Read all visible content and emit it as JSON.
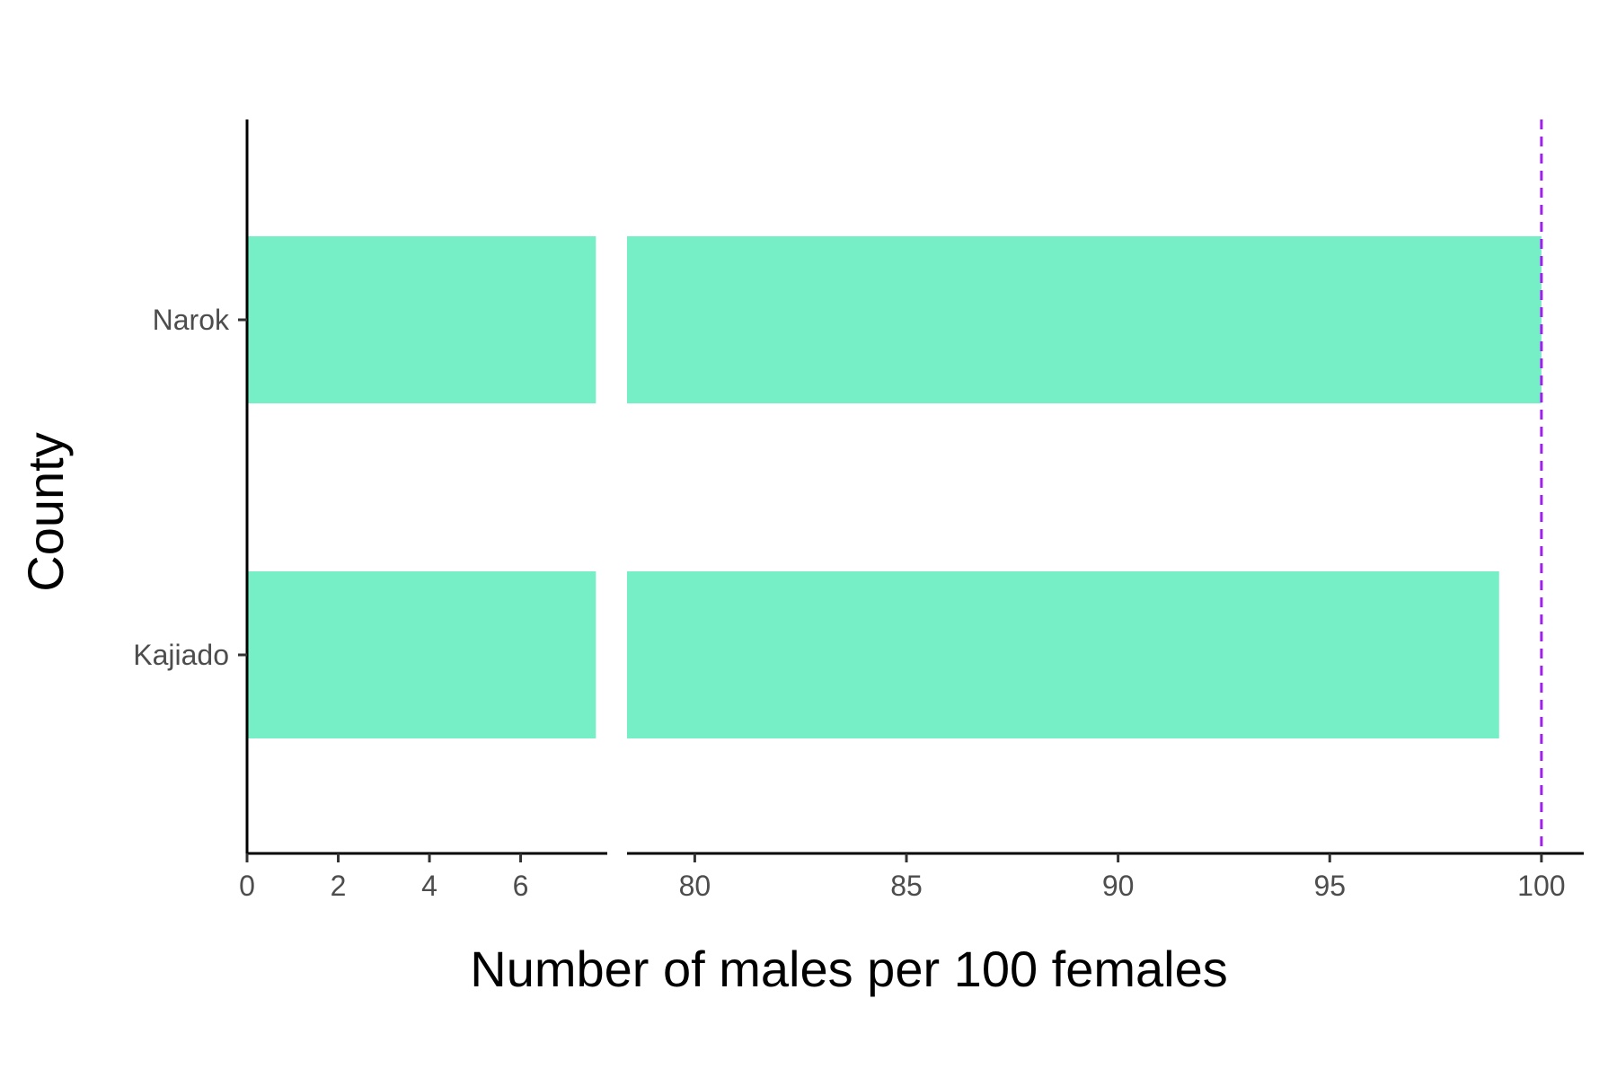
{
  "chart_data": {
    "type": "bar",
    "orientation": "horizontal",
    "categories": [
      "Kajiado",
      "Narok"
    ],
    "values": [
      99,
      100
    ],
    "xlabel": "Number of males per 100 females",
    "ylabel": "County",
    "x_axis_broken": true,
    "x_segments": [
      {
        "range": [
          0,
          7.9
        ],
        "ticks": [
          0,
          2,
          4,
          6
        ]
      },
      {
        "range": [
          78.4,
          101
        ],
        "ticks": [
          80,
          85,
          90,
          95,
          100
        ]
      }
    ],
    "reference_line": {
      "x": 100,
      "style": "dashed",
      "color": "#a020f0"
    },
    "bar_color": "#76eec6",
    "grid": false,
    "legend": "none"
  }
}
